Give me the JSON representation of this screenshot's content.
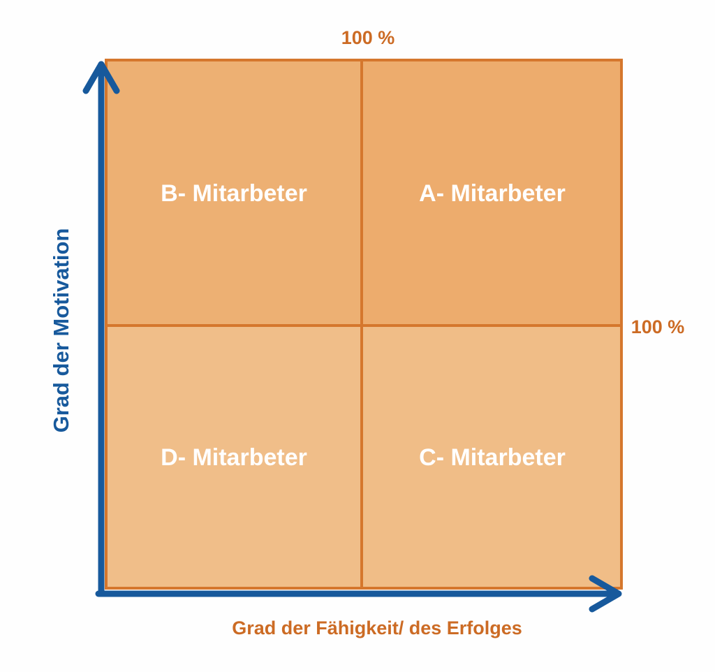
{
  "header": {
    "top_label": "100 %",
    "right_label": "100 %"
  },
  "axes": {
    "y_label": "Grad der Motivation",
    "x_label": "Grad der Fähigkeit/ des Erfolges"
  },
  "quadrants": [
    {
      "label": "B- Mitarbeter"
    },
    {
      "label": "A- Mitarbeter"
    },
    {
      "label": "D- Mitarbeter"
    },
    {
      "label": "C- Mitarbeter"
    }
  ]
}
